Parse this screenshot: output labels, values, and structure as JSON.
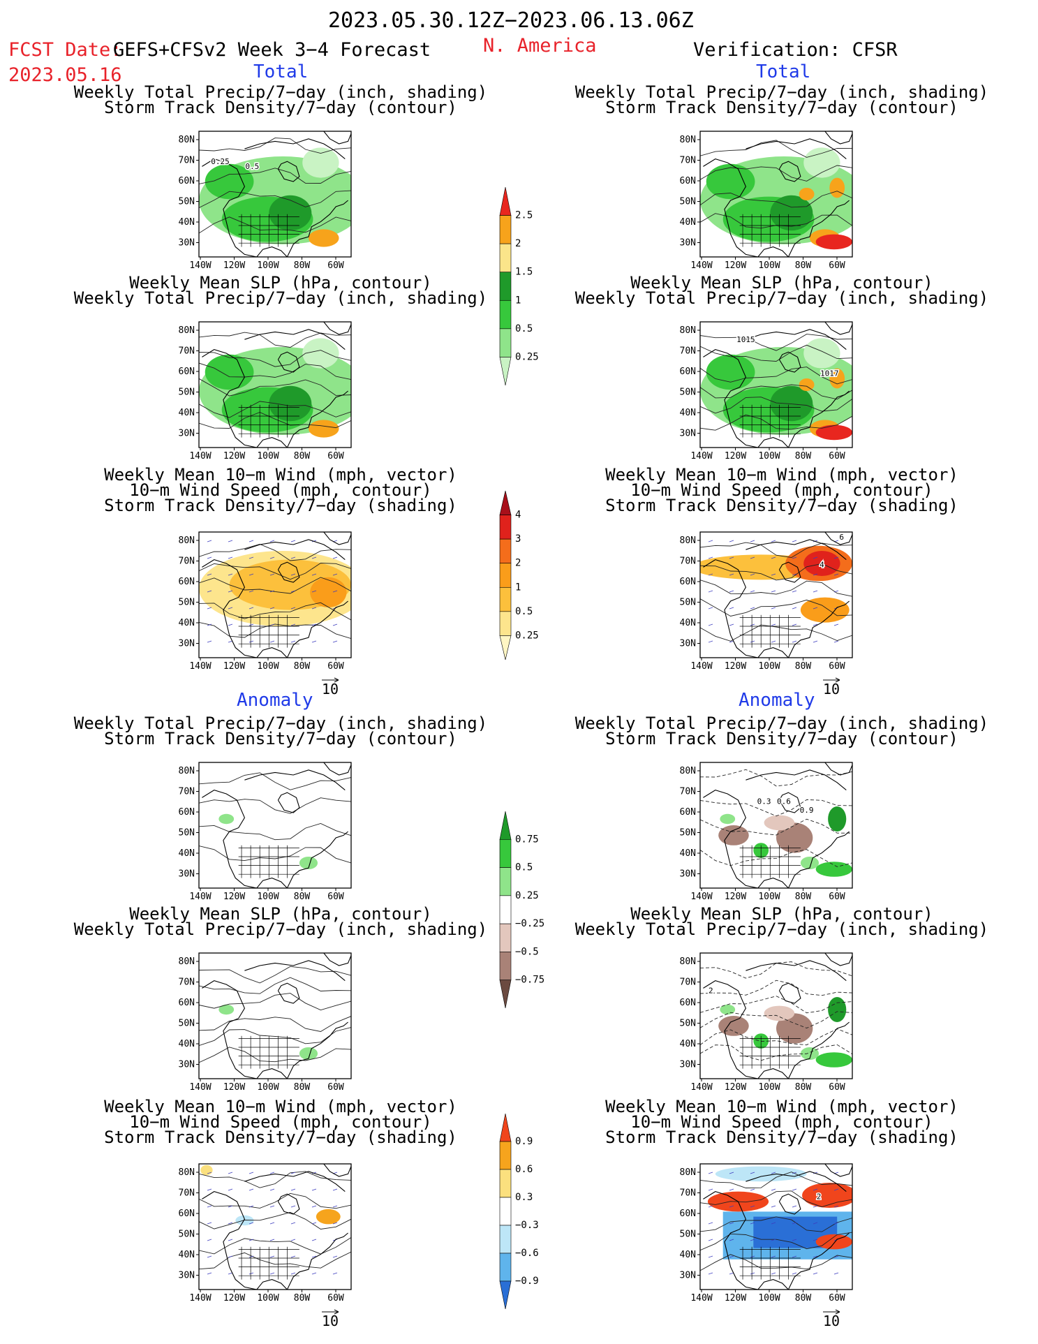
{
  "header": {
    "period": "2023.05.30.12Z−2023.06.13.06Z",
    "fcst_label": "FCST Date:",
    "fcst_model": "GEFS+CFSv2 Week 3−4 Forecast",
    "fcst_date": "2023.05.16",
    "region": "N. America",
    "verification": "Verification: CFSR"
  },
  "sections": {
    "total": "Total",
    "anomaly": "Anomaly"
  },
  "panel_titles": {
    "precip_storm": [
      "Weekly Total Precip/7−day (inch, shading)",
      "Storm Track Density/7−day (contour)"
    ],
    "slp_precip": [
      "Weekly Mean SLP (hPa, contour)",
      "Weekly Total Precip/7−day (inch, shading)"
    ],
    "wind_storm": [
      "Weekly Mean 10−m Wind (mph, vector)",
      "10−m Wind Speed (mph, contour)",
      "Storm Track Density/7−day (shading)"
    ]
  },
  "axes": {
    "lat_labels": [
      "80N",
      "70N",
      "60N",
      "50N",
      "40N",
      "30N"
    ],
    "lon_labels": [
      "140W",
      "120W",
      "100W",
      "80W",
      "60W"
    ]
  },
  "vector_ref": "10",
  "contour_labels": {
    "total_fcst_precip": [
      "0.25",
      "0.5"
    ],
    "total_obs_slp": [
      "1015",
      "1017"
    ],
    "total_obs_wind": [
      "6",
      "4"
    ],
    "anom_obs_precip": [
      "0.3",
      "0.6",
      "0.9"
    ],
    "anom_obs_slp": [
      "2"
    ],
    "anom_obs_wind": [
      "2"
    ]
  },
  "colorbars": [
    {
      "id": "precip_total",
      "labels": [
        "2.5",
        "2",
        "1.5",
        "1",
        "0.5",
        "0.25"
      ],
      "colors": [
        "#e8261f",
        "#f7a31b",
        "#fbe58a",
        "#1f9a2a",
        "#37c83c",
        "#8fe48a",
        "#c9f3c4"
      ]
    },
    {
      "id": "storm_total",
      "labels": [
        "4",
        "3",
        "2",
        "1",
        "0.5",
        "0.25"
      ],
      "colors": [
        "#a8101a",
        "#e0221c",
        "#f46d1b",
        "#fa9d1a",
        "#fcc03c",
        "#fde58d",
        "#fff6c4"
      ]
    },
    {
      "id": "precip_anom",
      "labels": [
        "0.75",
        "0.5",
        "0.25",
        "−0.25",
        "−0.5",
        "−0.75"
      ],
      "colors": [
        "#1f9a2a",
        "#37c83c",
        "#8fe48a",
        "#ffffff",
        "#e3c7bd",
        "#a98277",
        "#6b4a40"
      ]
    },
    {
      "id": "storm_anom",
      "labels": [
        "0.9",
        "0.6",
        "0.3",
        "−0.3",
        "−0.6",
        "−0.9"
      ],
      "colors": [
        "#f0451c",
        "#f6a41d",
        "#fbe07e",
        "#ffffff",
        "#bde6f7",
        "#5fb4ec",
        "#2a6fd6"
      ]
    }
  ]
}
